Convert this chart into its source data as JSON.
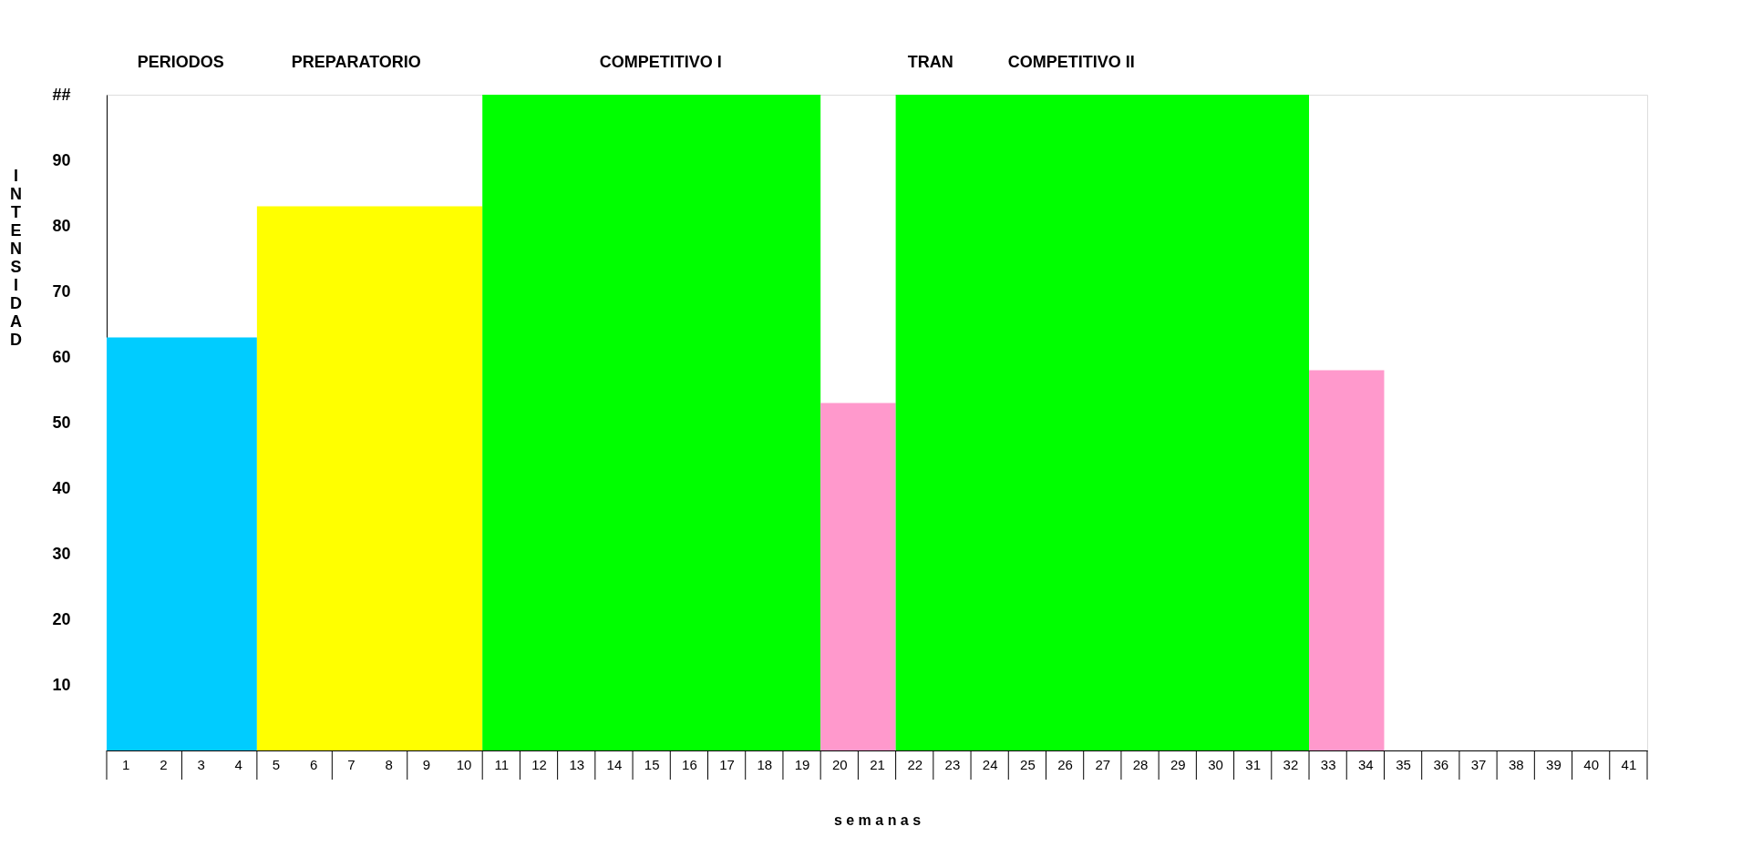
{
  "chart_data": {
    "type": "area",
    "ylabel": "INTENSIDAD",
    "xlabel": "s e m a n a s",
    "xlim": [
      0.5,
      41.5
    ],
    "xticks": [
      1,
      2,
      3,
      4,
      5,
      6,
      7,
      8,
      9,
      10,
      11,
      12,
      13,
      14,
      15,
      16,
      17,
      18,
      19,
      20,
      21,
      22,
      23,
      24,
      25,
      26,
      27,
      28,
      29,
      30,
      31,
      32,
      33,
      34,
      35,
      36,
      37,
      38,
      39,
      40,
      41
    ],
    "series": [
      {
        "color": "#00ccff",
        "x": [
          0.5,
          4.5
        ],
        "values": [
          63,
          63
        ]
      },
      {
        "color": "#ffff00",
        "x": [
          4.5,
          10.5
        ],
        "values": [
          83,
          83
        ]
      },
      {
        "color": "#00ff00",
        "x": [
          10.5,
          19.5
        ],
        "values": [
          100,
          100
        ]
      },
      {
        "color": "#ff99cc",
        "x": [
          19.5,
          21.5
        ],
        "values": [
          53,
          53
        ]
      },
      {
        "color": "#00ff00",
        "x": [
          21.5,
          32.5
        ],
        "values": [
          100,
          100
        ]
      },
      {
        "color": "#ff99cc",
        "x": [
          32.5,
          34.5
        ],
        "values": [
          58,
          58
        ]
      }
    ],
    "ylim": [
      0,
      100
    ],
    "yticks": [
      10,
      20,
      30,
      40,
      50,
      60,
      70,
      80,
      90,
      {
        "value": 100,
        "label": "##"
      }
    ],
    "annotations": [
      "PERIODOS",
      "PREPARATORIO",
      "COMPETITIVO  I",
      "TRAN",
      "COMPETITIVO  II"
    ],
    "grid": false
  }
}
